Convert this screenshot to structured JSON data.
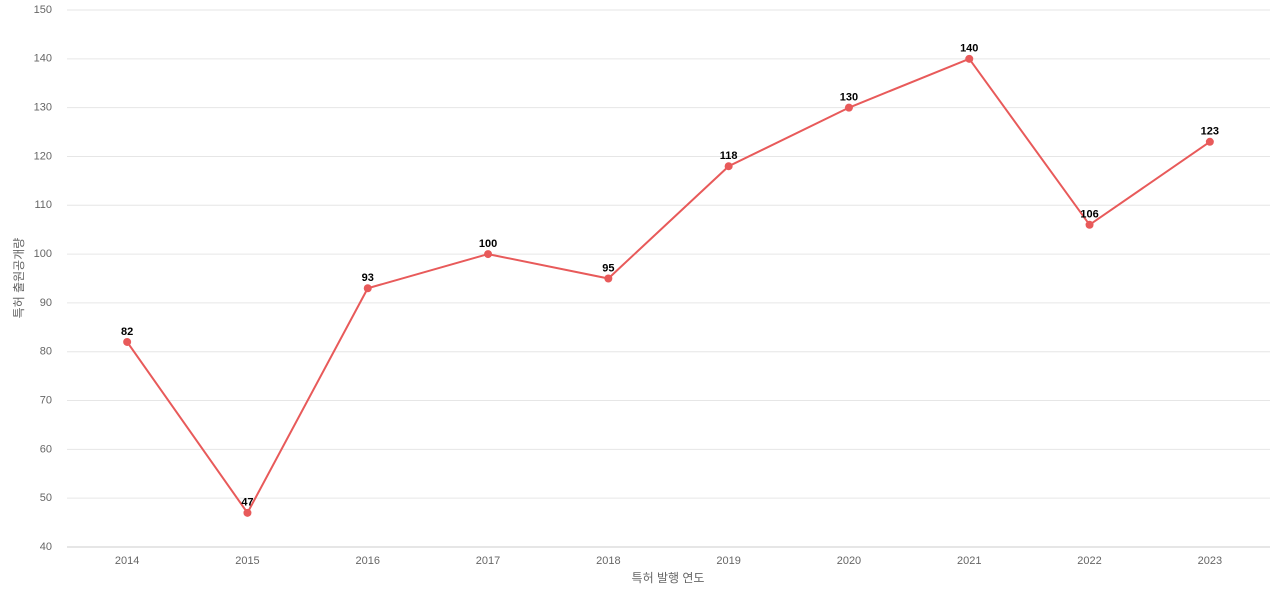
{
  "chart_data": {
    "type": "line",
    "x_label": "특허 발행 연도",
    "y_label": "특허 출원공개량",
    "categories": [
      "2014",
      "2015",
      "2016",
      "2017",
      "2018",
      "2019",
      "2020",
      "2021",
      "2022",
      "2023"
    ],
    "series": [
      {
        "name": "특허 출원공개량",
        "color": "#e85a5a",
        "values": [
          82,
          47,
          93,
          100,
          95,
          118,
          130,
          140,
          106,
          123
        ]
      }
    ],
    "ylim": [
      40,
      150
    ],
    "yticks": [
      40,
      50,
      60,
      70,
      80,
      90,
      100,
      110,
      120,
      130,
      140,
      150
    ],
    "grid": true
  }
}
